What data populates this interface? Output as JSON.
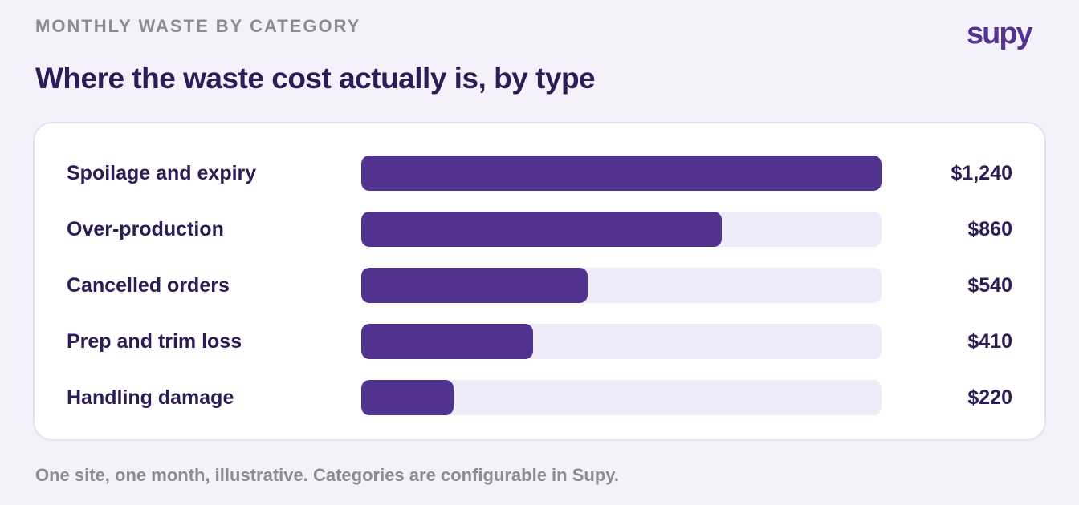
{
  "header": {
    "eyebrow": "MONTHLY WASTE BY CATEGORY",
    "title": "Where the waste cost actually is, by type",
    "logo": "supy"
  },
  "colors": {
    "bar": "#51338f",
    "track": "#efebf8",
    "text": "#2d1b55",
    "muted": "#8c8a92",
    "background": "#f4f1fb"
  },
  "chart_data": {
    "type": "bar",
    "orientation": "horizontal",
    "categories": [
      "Spoilage and expiry",
      "Over-production",
      "Cancelled orders",
      "Prep and trim loss",
      "Handling damage"
    ],
    "values": [
      1240,
      860,
      540,
      410,
      220
    ],
    "value_labels": [
      "$1,240",
      "$860",
      "$540",
      "$410",
      "$220"
    ],
    "xlim": [
      0,
      1240
    ]
  },
  "footnote": "One site, one month, illustrative. Categories are configurable in Supy."
}
